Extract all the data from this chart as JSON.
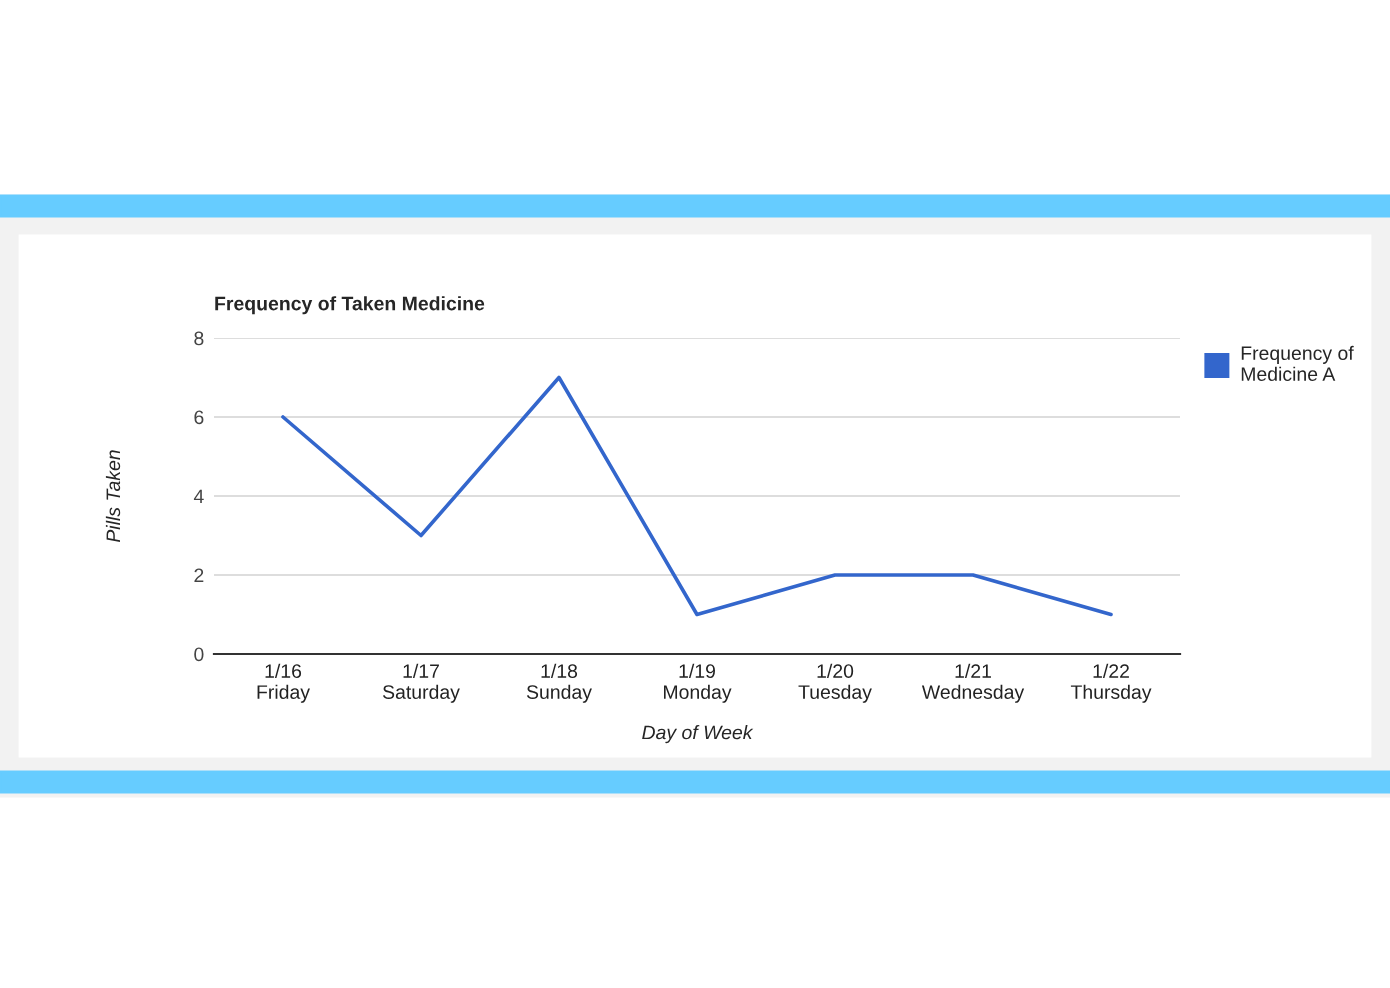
{
  "chart_data": {
    "type": "line",
    "title": "Frequency of Taken Medicine",
    "xlabel": "Day of Week",
    "ylabel": "Pills Taken",
    "categories": [
      "1/16\nFriday",
      "1/17\nSaturday",
      "1/18\nSunday",
      "1/19\nMonday",
      "1/20\nTuesday",
      "1/21\nWednesday",
      "1/22\nThursday"
    ],
    "series": [
      {
        "name": "Frequency of\nMedicine A",
        "color": "#3366cc",
        "values": [
          6,
          3,
          7,
          1,
          2,
          2,
          1
        ]
      }
    ],
    "ylim": [
      0,
      8
    ],
    "yticks": [
      0,
      2,
      4,
      6,
      8
    ],
    "grid": "y",
    "legend": "top right",
    "marker": "none",
    "line_style": "solid"
  }
}
